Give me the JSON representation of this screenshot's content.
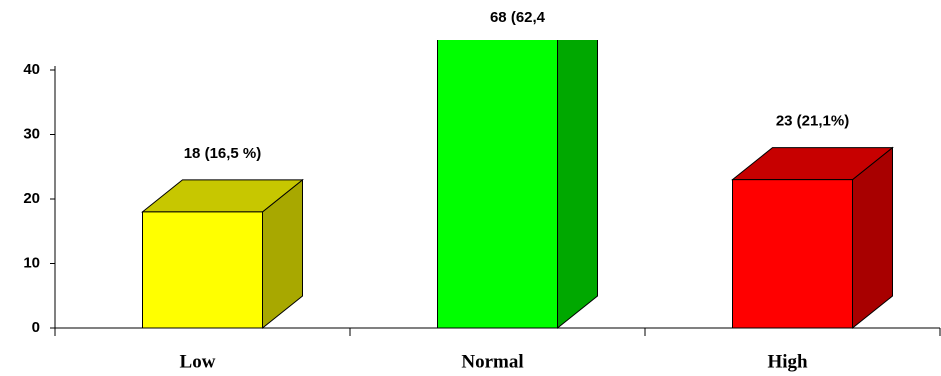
{
  "chart_data": {
    "type": "bar3d",
    "categories": [
      "Low",
      "Normal",
      "High"
    ],
    "values": [
      18,
      68,
      23
    ],
    "value_labels": [
      "18 (16,5 %)",
      "68 (62,4",
      "23 (21,1%)"
    ],
    "colors": [
      "#ffff00",
      "#00ff00",
      "#ff0000"
    ],
    "ylim": [
      0,
      40
    ],
    "yticks": [
      0,
      10,
      20,
      30,
      40
    ]
  }
}
